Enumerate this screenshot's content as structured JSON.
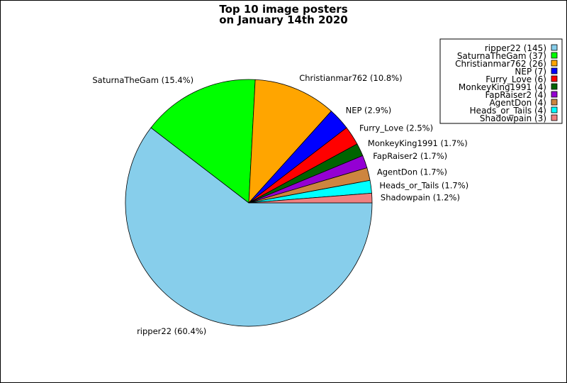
{
  "chart_data": {
    "type": "pie",
    "title_lines": [
      "Top 10 image posters",
      "on January 14th 2020"
    ],
    "start_angle_deg": 0,
    "direction": "clockwise",
    "slices": [
      {
        "name": "ripper22",
        "value": 145,
        "percent_label": "ripper22 (60.4%)",
        "legend_label": "ripper22 (145)",
        "color": "#87CEEB"
      },
      {
        "name": "SaturnaTheGam",
        "value": 37,
        "percent_label": "SaturnaTheGam (15.4%)",
        "legend_label": "SaturnaTheGam (37)",
        "color": "#00FF00"
      },
      {
        "name": "Christianmar762",
        "value": 26,
        "percent_label": "Christianmar762 (10.8%)",
        "legend_label": "Christianmar762 (26)",
        "color": "#FFA500"
      },
      {
        "name": "NEP",
        "value": 7,
        "percent_label": "NEP (2.9%)",
        "legend_label": "NEP (7)",
        "color": "#0000FF"
      },
      {
        "name": "Furry_Love",
        "value": 6,
        "percent_label": "Furry_Love (2.5%)",
        "legend_label": "Furry_Love (6)",
        "color": "#FF0000"
      },
      {
        "name": "MonkeyKing1991",
        "value": 4,
        "percent_label": "MonkeyKing1991 (1.7%)",
        "legend_label": "MonkeyKing1991 (4)",
        "color": "#006400"
      },
      {
        "name": "FapRaiser2",
        "value": 4,
        "percent_label": "FapRaiser2 (1.7%)",
        "legend_label": "FapRaiser2 (4)",
        "color": "#9400D3"
      },
      {
        "name": "AgentDon",
        "value": 4,
        "percent_label": "AgentDon (1.7%)",
        "legend_label": "AgentDon (4)",
        "color": "#CD853F"
      },
      {
        "name": "Heads_or_Tails",
        "value": 4,
        "percent_label": "Heads_or_Tails (1.7%)",
        "legend_label": "Heads_or_Tails (4)",
        "color": "#00FFFF"
      },
      {
        "name": "Shadowpain",
        "value": 3,
        "percent_label": "Shadowpain (1.2%)",
        "legend_label": "Shadowpain (3)",
        "color": "#F08080"
      }
    ],
    "legend_position": "top-right"
  }
}
